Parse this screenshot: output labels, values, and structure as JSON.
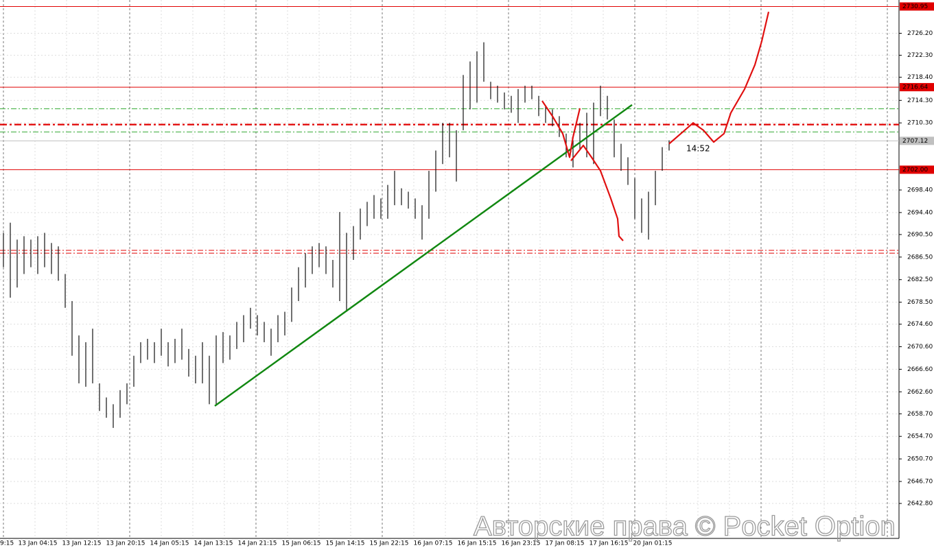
{
  "chart_data": {
    "type": "price-bars",
    "color": "#111111",
    "ylim": [
      2636.6,
      2732.1
    ],
    "yticks": [
      {
        "value": 2726.2,
        "label": "2726.20"
      },
      {
        "value": 2722.3,
        "label": "2722.30"
      },
      {
        "value": 2718.4,
        "label": "2718.40"
      },
      {
        "value": 2714.3,
        "label": "2714.30"
      },
      {
        "value": 2710.3,
        "label": "2710.30"
      },
      {
        "value": 2698.4,
        "label": "2698.40"
      },
      {
        "value": 2694.4,
        "label": "2694.40"
      },
      {
        "value": 2690.5,
        "label": "2690.50"
      },
      {
        "value": 2686.5,
        "label": "2686.50"
      },
      {
        "value": 2682.5,
        "label": "2682.50"
      },
      {
        "value": 2678.5,
        "label": "2678.50"
      },
      {
        "value": 2674.6,
        "label": "2674.60"
      },
      {
        "value": 2670.6,
        "label": "2670.60"
      },
      {
        "value": 2666.6,
        "label": "2666.60"
      },
      {
        "value": 2662.6,
        "label": "2662.60"
      },
      {
        "value": 2658.7,
        "label": "2658.70"
      },
      {
        "value": 2654.7,
        "label": "2654.70"
      },
      {
        "value": 2650.7,
        "label": "2650.70"
      },
      {
        "value": 2646.7,
        "label": "2646.70"
      },
      {
        "value": 2642.8,
        "label": "2642.80"
      }
    ],
    "time_labels": [
      "9:15",
      "13 Jan 04:15",
      "13 Jan 12:15",
      "13 Jan 20:15",
      "14 Jan 05:15",
      "14 Jan 13:15",
      "14 Jan 21:15",
      "15 Jan 06:15",
      "15 Jan 14:15",
      "15 Jan 22:15",
      "16 Jan 07:15",
      "16 Jan 15:15",
      "16 Jan 23:15",
      "17 Jan 08:15",
      "17 Jan 16:15",
      "20 Jan 01:15"
    ],
    "high": [
      2690.8,
      2692.6,
      2689.6,
      2690.2,
      2689.6,
      2690.2,
      2690.8,
      2689.0,
      2688.4,
      2683.5,
      2678.7,
      2672.6,
      2671.4,
      2673.8,
      2664.1,
      2661.6,
      2660.4,
      2662.9,
      2664.1,
      2669.0,
      2671.4,
      2672.0,
      2671.4,
      2673.8,
      2671.4,
      2672.0,
      2673.8,
      2670.2,
      2669.0,
      2671.4,
      2669.0,
      2672.6,
      2673.2,
      2672.6,
      2675.0,
      2676.2,
      2677.5,
      2676.2,
      2675.0,
      2673.8,
      2676.2,
      2676.8,
      2681.1,
      2684.7,
      2687.2,
      2688.4,
      2689.0,
      2688.4,
      2686.0,
      2694.5,
      2690.8,
      2692.0,
      2695.1,
      2696.3,
      2697.5,
      2696.9,
      2699.3,
      2701.8,
      2698.7,
      2698.1,
      2696.9,
      2695.7,
      2701.8,
      2705.4,
      2710.3,
      2710.3,
      2709.0,
      2718.8,
      2721.2,
      2723.0,
      2724.6,
      2717.6,
      2716.9,
      2715.7,
      2715.1,
      2716.3,
      2716.9,
      2716.9,
      2715.1,
      2713.3,
      2712.7,
      2711.5,
      2708.4,
      2707.2,
      2710.3,
      2712.1,
      2713.9,
      2716.9,
      2715.1,
      2710.9,
      2706.6,
      2704.2,
      2700.5,
      2696.9,
      2698.1,
      2701.8,
      2706.0,
      2707.2
    ],
    "low": [
      2684.7,
      2679.3,
      2681.1,
      2683.5,
      2684.7,
      2683.5,
      2684.7,
      2683.5,
      2682.3,
      2677.5,
      2669.0,
      2664.1,
      2663.5,
      2664.1,
      2659.2,
      2658.0,
      2656.2,
      2658.0,
      2660.4,
      2663.5,
      2667.7,
      2668.3,
      2667.7,
      2669.0,
      2667.1,
      2667.7,
      2668.3,
      2665.3,
      2664.1,
      2664.1,
      2660.4,
      2660.4,
      2667.7,
      2668.3,
      2670.2,
      2671.4,
      2673.8,
      2672.6,
      2671.4,
      2669.0,
      2671.4,
      2672.6,
      2675.0,
      2678.7,
      2681.1,
      2683.5,
      2684.7,
      2683.5,
      2681.1,
      2678.7,
      2676.8,
      2686.0,
      2689.6,
      2692.0,
      2693.3,
      2693.3,
      2693.3,
      2695.7,
      2695.7,
      2695.1,
      2693.3,
      2689.6,
      2693.3,
      2698.1,
      2703.0,
      2704.2,
      2699.9,
      2709.0,
      2712.7,
      2713.9,
      2717.6,
      2714.5,
      2713.9,
      2712.7,
      2712.1,
      2710.3,
      2713.9,
      2714.5,
      2711.5,
      2710.3,
      2709.7,
      2707.8,
      2704.2,
      2702.4,
      2705.4,
      2704.2,
      2703.0,
      2711.5,
      2710.9,
      2704.2,
      2701.8,
      2699.3,
      2693.3,
      2690.8,
      2689.6,
      2695.7,
      2701.8,
      2705.4
    ],
    "levels": [
      {
        "value": 2730.95,
        "label": "2730.95",
        "color": "#e00000",
        "style": "solid"
      },
      {
        "value": 2716.64,
        "label": "2716.64",
        "color": "#e00000",
        "style": "solid"
      },
      {
        "value": 2702.0,
        "label": "2702.00",
        "color": "#e00000",
        "style": "solid"
      },
      {
        "value": 2707.12,
        "label": "2707.12",
        "color": "#c0c0c0",
        "style": "solid"
      },
      {
        "value": 2712.8,
        "color": "#33aa33",
        "style": "dashdot"
      },
      {
        "value": 2710.0,
        "color": "#e00000",
        "style": "dashdot-bold"
      },
      {
        "value": 2708.7,
        "color": "#33aa33",
        "style": "dashdot"
      },
      {
        "value": 2687.7,
        "color": "#e00000",
        "style": "dashdot"
      },
      {
        "value": 2687.2,
        "color": "#e00000",
        "style": "dashdot"
      }
    ],
    "trendline": {
      "color": "#118811",
      "x": [
        30.8,
        91.6
      ],
      "y": [
        2660.1,
        2713.5
      ]
    },
    "forecasts": [
      {
        "color": "#e01010",
        "x": [
          78.5,
          80,
          81.5,
          82.5,
          83,
          84
        ],
        "y": [
          2714.2,
          2711.5,
          2708.4,
          2704.2,
          2707.8,
          2712.9
        ]
      },
      {
        "color": "#e01010",
        "x": [
          82.7,
          84.5,
          85.7,
          87,
          88.5,
          89.5,
          89.7,
          90.3
        ],
        "y": [
          2703.6,
          2706.3,
          2704.2,
          2701.8,
          2696.9,
          2693.3,
          2690.2,
          2689.4
        ]
      },
      {
        "color": "#e01010",
        "x": [
          97,
          99,
          100.5,
          102,
          103.5,
          105,
          106,
          108,
          109.5,
          110.5,
          111.5
        ],
        "y": [
          2706.6,
          2708.7,
          2710.3,
          2709.0,
          2706.9,
          2708.4,
          2712.1,
          2716.3,
          2720.6,
          2724.8,
          2730.0
        ]
      }
    ],
    "timer": "14:52",
    "watermark": "Авторские права © Pocket Option"
  }
}
